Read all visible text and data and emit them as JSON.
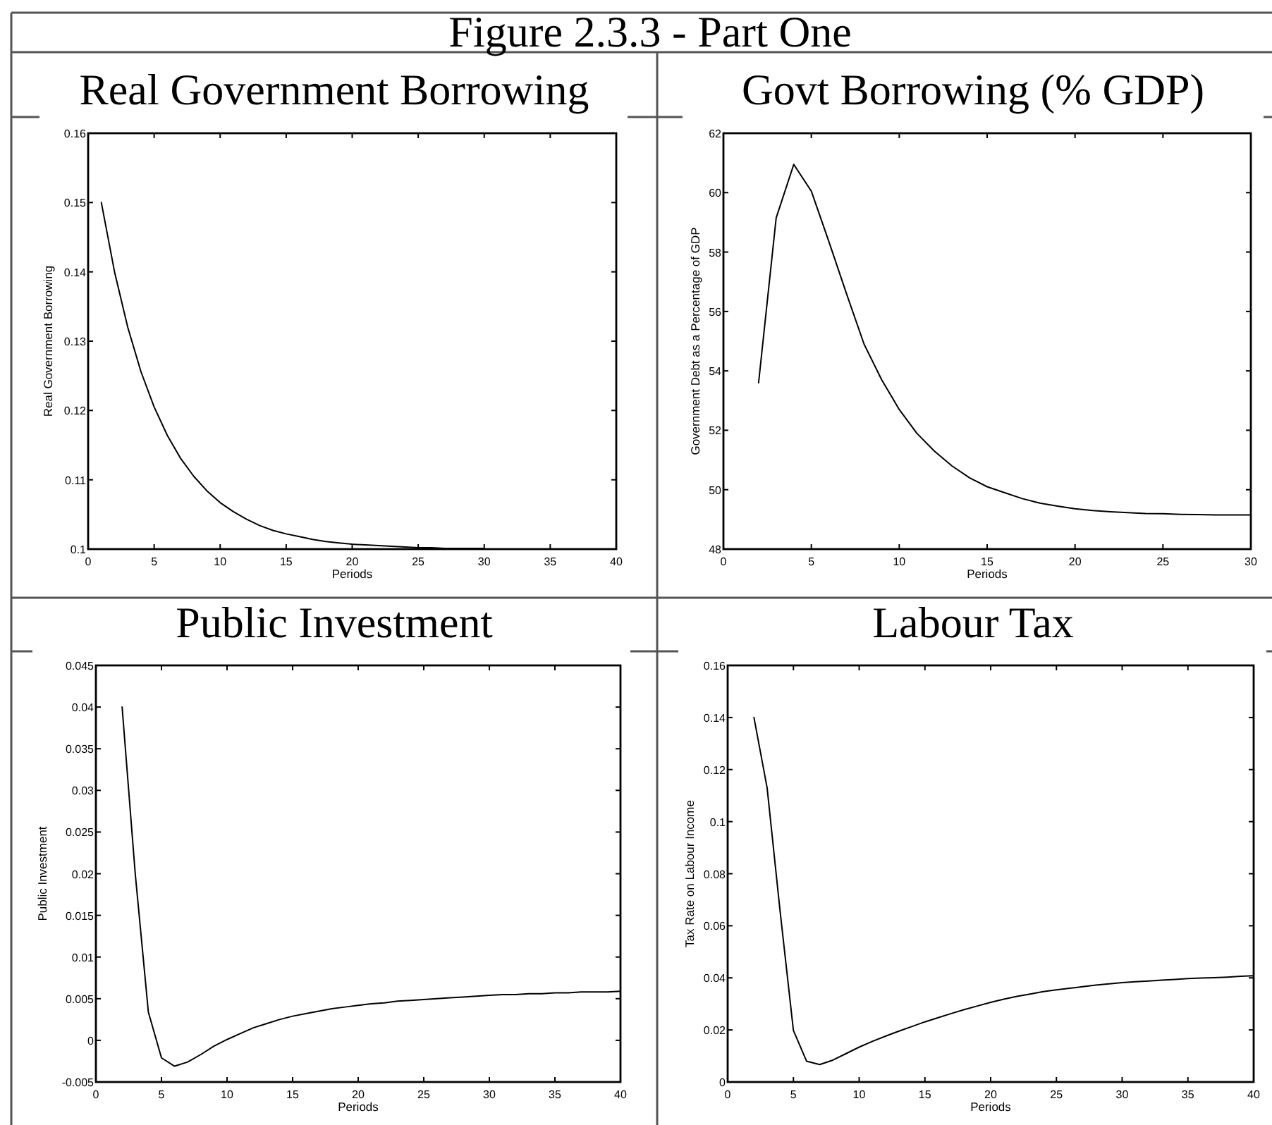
{
  "chart_data": [
    {
      "type": "other",
      "title": "Figure 2.3.3 - Part One"
    },
    {
      "type": "line",
      "title": "Real Government Borrowing",
      "xlabel": "Periods",
      "ylabel": "Real Government Borrowing",
      "x": [
        1,
        2,
        3,
        4,
        5,
        6,
        7,
        8,
        9,
        10,
        11,
        12,
        13,
        14,
        15,
        16,
        17,
        18,
        19,
        20,
        21,
        22,
        23,
        24,
        25,
        26,
        27,
        28,
        29,
        30
      ],
      "series": [
        {
          "color": "#000000",
          "values": [
            0.15,
            0.14,
            0.132,
            0.1256,
            0.1205,
            0.1164,
            0.1131,
            0.1105,
            0.1084,
            0.1067,
            0.1054,
            0.1043,
            0.1034,
            0.1027,
            0.1022,
            0.1018,
            0.1014,
            0.1011,
            0.1009,
            0.1007,
            0.1006,
            0.1005,
            0.1004,
            0.1003,
            0.1002,
            0.1002,
            0.1001,
            0.1001,
            0.1001,
            0.1001
          ]
        }
      ],
      "xlim": [
        0,
        40
      ],
      "ylim": [
        0.1,
        0.16
      ],
      "xticks": [
        0,
        5,
        10,
        15,
        20,
        25,
        30,
        35,
        40
      ],
      "yticks": [
        0.1,
        0.11,
        0.12,
        0.13,
        0.14,
        0.15,
        0.16
      ]
    },
    {
      "type": "line",
      "title": "Govt Borrowing (% GDP)",
      "xlabel": "Periods",
      "ylabel": "Government Debt as a Percentage of GDP",
      "x": [
        2,
        3,
        4,
        5,
        6,
        7,
        8,
        9,
        10,
        11,
        12,
        13,
        14,
        15,
        16,
        17,
        18,
        19,
        20,
        21,
        22,
        23,
        24,
        25,
        26,
        27,
        28,
        29,
        30
      ],
      "series": [
        {
          "color": "#000000",
          "values": [
            53.6,
            59.15,
            60.95,
            60.05,
            58.35,
            56.6,
            54.9,
            53.7,
            52.7,
            51.9,
            51.3,
            50.8,
            50.4,
            50.1,
            49.9,
            49.7,
            49.55,
            49.45,
            49.36,
            49.3,
            49.26,
            49.23,
            49.2,
            49.19,
            49.17,
            49.16,
            49.15,
            49.15,
            49.15
          ]
        }
      ],
      "xlim": [
        0,
        30
      ],
      "ylim": [
        48,
        62
      ],
      "xticks": [
        0,
        5,
        10,
        15,
        20,
        25,
        30
      ],
      "yticks": [
        48,
        50,
        52,
        54,
        56,
        58,
        60,
        62
      ]
    },
    {
      "type": "line",
      "title": "Public Investment",
      "xlabel": "Periods",
      "ylabel": "Public Investment",
      "x": [
        2,
        3,
        4,
        5,
        6,
        7,
        8,
        9,
        10,
        11,
        12,
        13,
        14,
        15,
        16,
        17,
        18,
        19,
        20,
        21,
        22,
        23,
        24,
        25,
        26,
        27,
        28,
        29,
        30,
        31,
        32,
        33,
        34,
        35,
        36,
        37,
        38,
        39,
        40
      ],
      "series": [
        {
          "color": "#000000",
          "values": [
            0.04,
            0.02,
            0.0034,
            -0.0021,
            -0.0031,
            -0.0026,
            -0.0017,
            -0.0007,
            0.0001,
            0.0008,
            0.0015,
            0.002,
            0.0025,
            0.0029,
            0.0032,
            0.0035,
            0.0038,
            0.004,
            0.0042,
            0.0044,
            0.0045,
            0.0047,
            0.0048,
            0.0049,
            0.005,
            0.0051,
            0.0052,
            0.0053,
            0.0054,
            0.0055,
            0.0055,
            0.0056,
            0.0056,
            0.0057,
            0.0057,
            0.0058,
            0.0058,
            0.0058,
            0.0059
          ]
        }
      ],
      "xlim": [
        0,
        40
      ],
      "ylim": [
        -0.005,
        0.045
      ],
      "xticks": [
        0,
        5,
        10,
        15,
        20,
        25,
        30,
        35,
        40
      ],
      "yticks": [
        -0.005,
        0,
        0.005,
        0.01,
        0.015,
        0.02,
        0.025,
        0.03,
        0.035,
        0.04,
        0.045
      ]
    },
    {
      "type": "line",
      "title": "Labour Tax",
      "xlabel": "Periods",
      "ylabel": "Tax Rate on Labour Income",
      "x": [
        2,
        3,
        4,
        5,
        6,
        7,
        8,
        9,
        10,
        11,
        12,
        13,
        14,
        15,
        16,
        17,
        18,
        19,
        20,
        21,
        22,
        23,
        24,
        25,
        26,
        27,
        28,
        29,
        30,
        31,
        32,
        33,
        34,
        35,
        36,
        37,
        38,
        39,
        40
      ],
      "series": [
        {
          "color": "#000000",
          "values": [
            0.14,
            0.113,
            0.065,
            0.0198,
            0.008,
            0.0067,
            0.0084,
            0.0109,
            0.0134,
            0.0156,
            0.0176,
            0.0195,
            0.0213,
            0.0231,
            0.0247,
            0.0263,
            0.0278,
            0.0292,
            0.0306,
            0.0318,
            0.0329,
            0.0338,
            0.0347,
            0.0354,
            0.036,
            0.0366,
            0.0372,
            0.0377,
            0.0382,
            0.0385,
            0.0388,
            0.0391,
            0.0394,
            0.0397,
            0.0399,
            0.0401,
            0.0403,
            0.0406,
            0.0408
          ]
        }
      ],
      "xlim": [
        0,
        40
      ],
      "ylim": [
        0,
        0.16
      ],
      "xticks": [
        0,
        5,
        10,
        15,
        20,
        25,
        30,
        35,
        40
      ],
      "yticks": [
        0,
        0.02,
        0.04,
        0.06,
        0.08,
        0.1,
        0.12,
        0.14,
        0.16
      ]
    }
  ]
}
